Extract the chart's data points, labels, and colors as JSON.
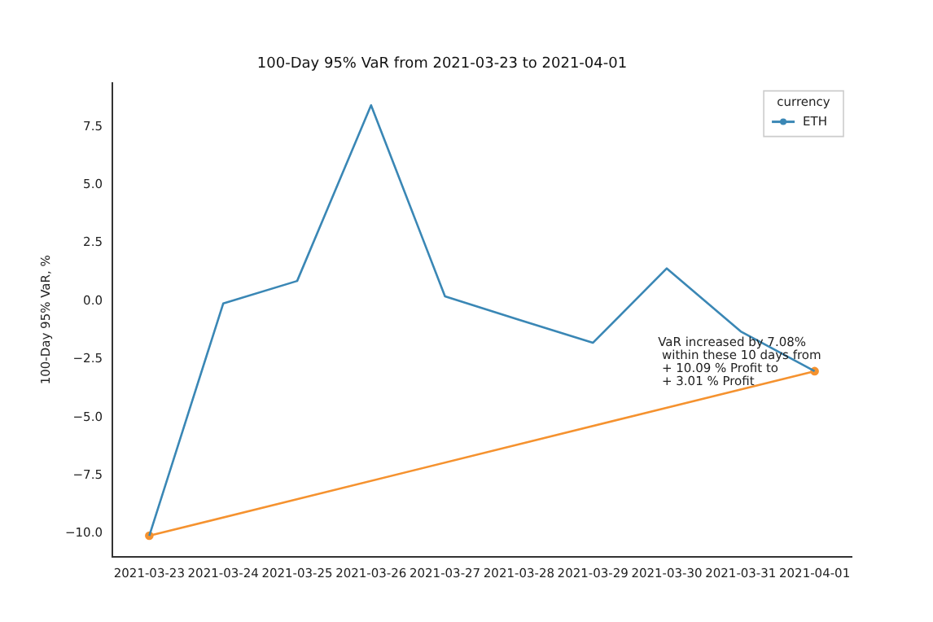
{
  "chart_data": {
    "type": "line",
    "title": "100-Day 95% VaR from 2021-03-23 to 2021-04-01",
    "ylabel": "100-Day 95% VaR, %",
    "legend_title": "currency",
    "legend": "top right",
    "grid": false,
    "categories": [
      "2021-03-23",
      "2021-03-24",
      "2021-03-25",
      "2021-03-26",
      "2021-03-27",
      "2021-03-28",
      "2021-03-29",
      "2021-03-30",
      "2021-03-31",
      "2021-04-01"
    ],
    "ylim": [
      -11.0,
      9.4
    ],
    "yticks": [
      {
        "value": -10,
        "label": "−10.0"
      },
      {
        "value": -7.5,
        "label": "−7.5"
      },
      {
        "value": -5,
        "label": "−5.0"
      },
      {
        "value": -2.5,
        "label": "−2.5"
      },
      {
        "value": 0,
        "label": "0.0"
      },
      {
        "value": 2.5,
        "label": "2.5"
      },
      {
        "value": 5,
        "label": "5.0"
      },
      {
        "value": 7.5,
        "label": "7.5"
      }
    ],
    "series": [
      {
        "name": "ETH",
        "color": "#3a87b5",
        "marker": "none",
        "values": [
          -10.09,
          -0.1,
          0.87,
          8.43,
          0.21,
          -0.8,
          -1.79,
          1.41,
          -1.3,
          -3.01
        ]
      },
      {
        "color": "#f5922f",
        "marker": "circle",
        "values": [
          -10.09,
          null,
          null,
          null,
          null,
          null,
          null,
          null,
          null,
          -3.01
        ]
      }
    ],
    "annotations": [
      {
        "text": "VaR increased by 7.08%\n within these 10 days from\n + 10.09 % Profit to\n + 3.01 % Profit",
        "x": "2021-04-01",
        "y": -3.01
      }
    ]
  }
}
